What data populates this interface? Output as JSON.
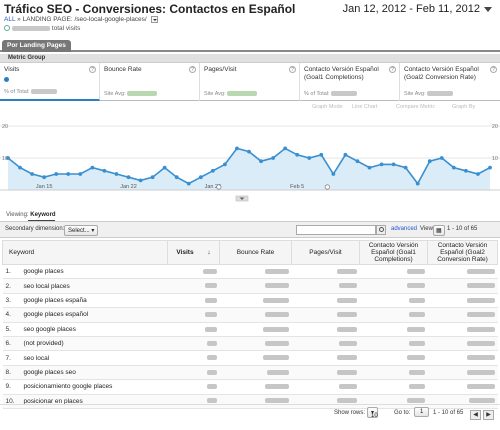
{
  "header": {
    "title": "Tráfico SEO - Conversiones: Contactos en Español",
    "date_range": "Jan 12, 2012 - Feb 11, 2012",
    "breadcrumb_all": "ALL",
    "breadcrumb_sep": "»",
    "breadcrumb_landing": "LANDING PAGE: /seo-local-google-places/",
    "total_visits_suffix": "total visits"
  },
  "tabs": {
    "active": "Por Landing Pages"
  },
  "metric_group": "Metric Group",
  "metrics": [
    {
      "label": "Visits",
      "sub": "% of Total:"
    },
    {
      "label": "Bounce Rate",
      "sub": "Site Avg:"
    },
    {
      "label": "Pages/Visit",
      "sub": "Site Avg:"
    },
    {
      "label": "Contacto Versión Español (Goal1 Completions)",
      "sub": "% of Total:"
    },
    {
      "label": "Contacto Versión Español (Goal2 Conversion Rate)",
      "sub": "Site Avg:"
    }
  ],
  "graph_controls": {
    "graph_mode": "Graph Mode",
    "line_chart": "Line Chart",
    "compare_metric": "Compare Metric",
    "graph_by": "Graph By"
  },
  "chart_data": {
    "type": "line",
    "y_left_max": "20",
    "y_left_mid": "10",
    "y_right_max": "20",
    "y_right_mid": "10",
    "x_tick_labels": [
      "Jan 15",
      "Jan 22",
      "Jan 29",
      "Feb 5"
    ],
    "ylim": [
      0,
      20
    ],
    "series": [
      {
        "values": [
          10,
          7,
          5,
          4,
          5,
          5,
          5,
          7,
          6,
          5,
          4,
          3,
          4,
          7,
          4,
          2,
          4,
          6,
          8,
          13,
          12,
          9,
          10,
          13,
          11,
          10,
          11,
          5,
          11,
          9,
          7,
          8,
          8,
          7,
          2,
          9,
          10,
          7,
          6,
          5,
          7
        ]
      }
    ],
    "color": "#3a8fd0",
    "fill": "#d9ecf8",
    "grid": false
  },
  "viewing": {
    "label": "Viewing:",
    "value": "Keyword"
  },
  "controls": {
    "secondary_dimension": "Secondary dimension:",
    "select_label": "Select...",
    "advanced": "advanced",
    "view": "View:",
    "pager": "1 - 10 of 65"
  },
  "table": {
    "headers": {
      "keyword": "Keyword",
      "visits": "Visits",
      "bounce_rate": "Bounce Rate",
      "pages_visit": "Pages/Visit",
      "goal1": "Contacto Versión Español (Goal1 Completions)",
      "goal2": "Contacto Versión Español (Goal2 Conversion Rate)"
    },
    "rows": [
      {
        "num": "1.",
        "keyword": "google places"
      },
      {
        "num": "2.",
        "keyword": "seo local places"
      },
      {
        "num": "3.",
        "keyword": "google places españa"
      },
      {
        "num": "4.",
        "keyword": "google places español"
      },
      {
        "num": "5.",
        "keyword": "seo google places"
      },
      {
        "num": "6.",
        "keyword": "(not provided)"
      },
      {
        "num": "7.",
        "keyword": "seo local"
      },
      {
        "num": "8.",
        "keyword": "google places seo"
      },
      {
        "num": "9.",
        "keyword": "posicionamiento google places"
      },
      {
        "num": "10.",
        "keyword": "posicionar en places"
      }
    ]
  },
  "footer": {
    "show_rows": "Show rows:",
    "rows_value": "10",
    "goto": "Go to:",
    "goto_value": "1",
    "pager": "1 - 10 of 65"
  }
}
